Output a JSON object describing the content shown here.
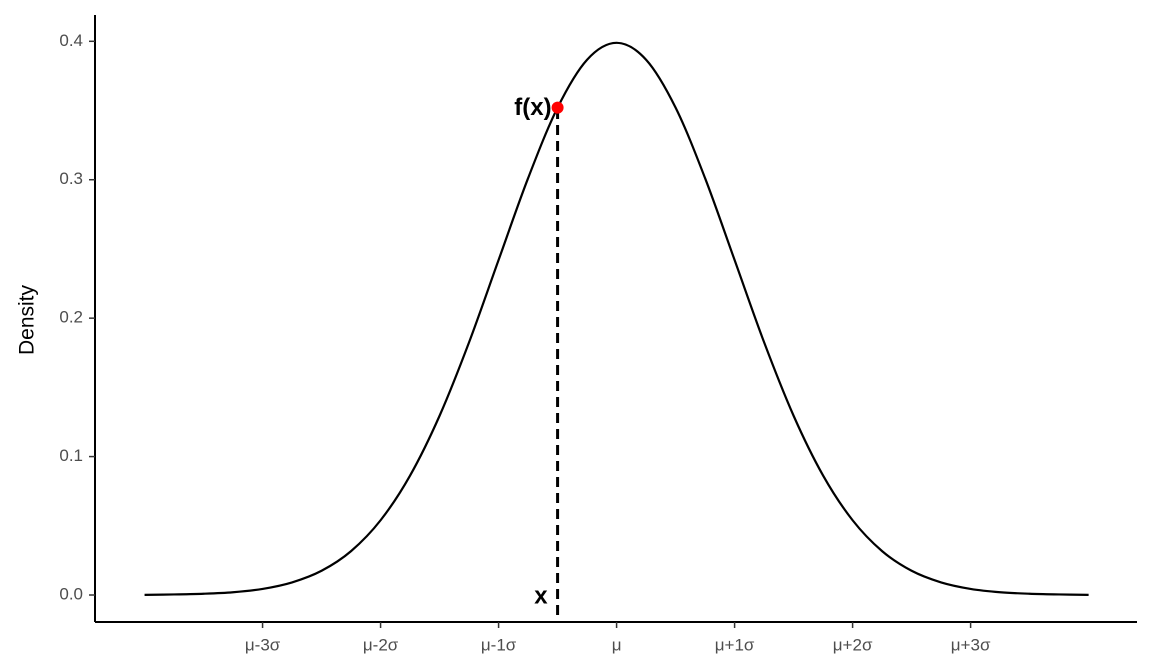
{
  "chart_data": {
    "type": "line",
    "ylabel": "Density",
    "x": [
      -4,
      -3.75,
      -3.5,
      -3.25,
      -3,
      -2.75,
      -2.5,
      -2.25,
      -2,
      -1.75,
      -1.5,
      -1.25,
      -1,
      -0.75,
      -0.5,
      -0.25,
      0,
      0.25,
      0.5,
      0.75,
      1,
      1.25,
      1.5,
      1.75,
      2,
      2.25,
      2.5,
      2.75,
      3,
      3.25,
      3.5,
      3.75,
      4
    ],
    "series": [
      {
        "color": "#000000",
        "values": [
          0.0001,
          0.0004,
          0.0009,
          0.002,
          0.0044,
          0.0091,
          0.0175,
          0.0317,
          0.054,
          0.0863,
          0.1295,
          0.1826,
          0.242,
          0.3011,
          0.3521,
          0.3867,
          0.3989,
          0.3867,
          0.3521,
          0.3011,
          0.242,
          0.1826,
          0.1295,
          0.0863,
          0.054,
          0.0317,
          0.0175,
          0.0091,
          0.0044,
          0.002,
          0.0009,
          0.0004,
          0.0001
        ]
      }
    ],
    "highlight": {
      "x": -0.5,
      "y": 0.3521,
      "color": "#ff0000",
      "label": "f(x)",
      "x_label": "x"
    },
    "xlim": [
      -4.42,
      4.41
    ],
    "ylim": [
      -0.0195,
      0.419
    ],
    "xticks": [
      {
        "value": -3,
        "label": "μ-3σ"
      },
      {
        "value": -2,
        "label": "μ-2σ"
      },
      {
        "value": -1,
        "label": "μ-1σ"
      },
      {
        "value": 0,
        "label": "μ"
      },
      {
        "value": 1,
        "label": "μ+1σ"
      },
      {
        "value": 2,
        "label": "μ+2σ"
      },
      {
        "value": 3,
        "label": "μ+3σ"
      }
    ],
    "yticks": [
      {
        "value": 0,
        "label": "0.0"
      },
      0.1,
      0.2,
      0.3,
      0.4
    ]
  }
}
